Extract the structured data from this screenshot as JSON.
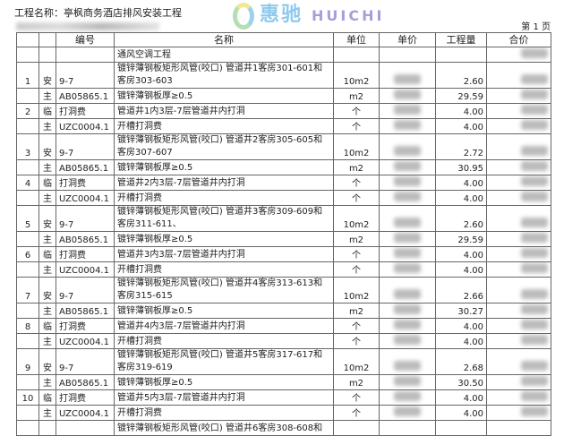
{
  "header": {
    "project": "工程名称：亭枫商务酒店排风安装工程",
    "page": "第 1 页"
  },
  "columns": [
    "",
    "",
    "编号",
    "名称",
    "单位",
    "单价",
    "工程量",
    "合价"
  ],
  "rows": [
    {
      "no": "",
      "type": "",
      "code": "",
      "name": "通风空调工程",
      "unit": "",
      "price_blur": false,
      "qty": "",
      "total_blur": true,
      "h": 1
    },
    {
      "no": "1",
      "type": "安",
      "code": "9-7",
      "name": "镀锌薄钢板矩形风管(咬口) 管道井1客房301-601和客房303-603",
      "unit": "10m2",
      "price_blur": true,
      "qty": "2.60",
      "total_blur": true,
      "h": 2
    },
    {
      "no": "",
      "type": "主",
      "code": "AB05865.1",
      "name": "镀锌薄钢板厚≥0.5",
      "unit": "m2",
      "price_blur": true,
      "qty": "29.59",
      "total_blur": true,
      "h": 1
    },
    {
      "no": "2",
      "type": "临",
      "code": "打洞费",
      "name": "管道井1内3层-7层管道井内打洞",
      "unit": "个",
      "price_blur": true,
      "qty": "4.00",
      "total_blur": true,
      "h": 1
    },
    {
      "no": "",
      "type": "主",
      "code": "UZC0004.1",
      "name": "开槽打洞费",
      "unit": "个",
      "price_blur": true,
      "qty": "4.00",
      "total_blur": true,
      "h": 1
    },
    {
      "no": "3",
      "type": "安",
      "code": "9-7",
      "name": "镀锌薄钢板矩形风管(咬口) 管道井2客房305-605和客房307-607",
      "unit": "10m2",
      "price_blur": true,
      "qty": "2.72",
      "total_blur": true,
      "h": 2
    },
    {
      "no": "",
      "type": "主",
      "code": "AB05865.1",
      "name": "镀锌薄钢板厚≥0.5",
      "unit": "m2",
      "price_blur": true,
      "qty": "30.95",
      "total_blur": true,
      "h": 1
    },
    {
      "no": "4",
      "type": "临",
      "code": "打洞费",
      "name": "管道井2内3层-7层管道井内打洞",
      "unit": "个",
      "price_blur": true,
      "qty": "4.00",
      "total_blur": true,
      "h": 1
    },
    {
      "no": "",
      "type": "主",
      "code": "UZC0004.1",
      "name": "开槽打洞费",
      "unit": "个",
      "price_blur": true,
      "qty": "4.00",
      "total_blur": true,
      "h": 1
    },
    {
      "no": "5",
      "type": "安",
      "code": "9-7",
      "name": "镀锌薄钢板矩形风管(咬口) 管道井3客房309-609和客房311-611、",
      "unit": "10m2",
      "price_blur": true,
      "qty": "2.60",
      "total_blur": true,
      "h": 2
    },
    {
      "no": "",
      "type": "主",
      "code": "AB05865.1",
      "name": "镀锌薄钢板厚≥0.5",
      "unit": "m2",
      "price_blur": true,
      "qty": "29.59",
      "total_blur": true,
      "h": 1
    },
    {
      "no": "6",
      "type": "临",
      "code": "打洞费",
      "name": "管道井3内3层-7层管道井内打洞",
      "unit": "个",
      "price_blur": true,
      "qty": "4.00",
      "total_blur": true,
      "h": 1
    },
    {
      "no": "",
      "type": "主",
      "code": "UZC0004.1",
      "name": "开槽打洞费",
      "unit": "个",
      "price_blur": true,
      "qty": "4.00",
      "total_blur": true,
      "h": 1
    },
    {
      "no": "7",
      "type": "安",
      "code": "9-7",
      "name": "镀锌薄钢板矩形风管(咬口) 管道井4客房313-613和客房315-615",
      "unit": "10m2",
      "price_blur": true,
      "qty": "2.66",
      "total_blur": true,
      "h": 2
    },
    {
      "no": "",
      "type": "主",
      "code": "AB05865.1",
      "name": "镀锌薄钢板厚≥0.5",
      "unit": "m2",
      "price_blur": true,
      "qty": "30.27",
      "total_blur": true,
      "h": 1
    },
    {
      "no": "8",
      "type": "临",
      "code": "打洞费",
      "name": "管道井4内3层-7层管道井内打洞",
      "unit": "个",
      "price_blur": true,
      "qty": "4.00",
      "total_blur": true,
      "h": 1
    },
    {
      "no": "",
      "type": "主",
      "code": "UZC0004.1",
      "name": "开槽打洞费",
      "unit": "个",
      "price_blur": true,
      "qty": "4.00",
      "total_blur": true,
      "h": 1
    },
    {
      "no": "9",
      "type": "安",
      "code": "9-7",
      "name": "镀锌薄钢板矩形风管(咬口) 管道井5客房317-617和客房319-619",
      "unit": "10m2",
      "price_blur": true,
      "qty": "2.68",
      "total_blur": true,
      "h": 2
    },
    {
      "no": "",
      "type": "主",
      "code": "AB05865.1",
      "name": "镀锌薄钢板厚≥0.5",
      "unit": "m2",
      "price_blur": true,
      "qty": "30.50",
      "total_blur": true,
      "h": 1
    },
    {
      "no": "10",
      "type": "临",
      "code": "打洞费",
      "name": "管道井5内3层-7层管道井内打洞",
      "unit": "个",
      "price_blur": true,
      "qty": "4.00",
      "total_blur": true,
      "h": 1
    },
    {
      "no": "",
      "type": "主",
      "code": "UZC0004.1",
      "name": "开槽打洞费",
      "unit": "个",
      "price_blur": true,
      "qty": "4.00",
      "total_blur": true,
      "h": 1
    },
    {
      "no": "",
      "type": "",
      "code": "",
      "name": "镀锌薄钢板矩形风管(咬口) 管道井6客房308-608和",
      "unit": "",
      "price_blur": false,
      "qty": "",
      "total_blur": false,
      "h": 1
    }
  ],
  "watermark": {
    "cn": "惠驰",
    "en": "HUICHI"
  }
}
